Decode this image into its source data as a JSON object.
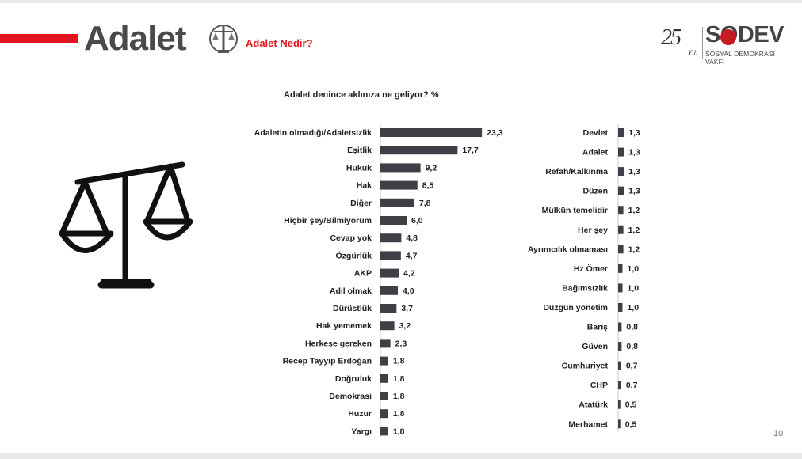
{
  "header": {
    "title": "Adalet",
    "subtitle": "Adalet Nedir?",
    "logo_number": "25",
    "logo_yili": "Yılı",
    "logo_brand": "SODEV",
    "logo_brand_sub": "SOSYAL DEMOKRASİ VAKFI"
  },
  "page_number": "10",
  "colors": {
    "accent": "#e3151f",
    "bar": "#3f3f45",
    "title": "#4a4a4a"
  },
  "icons": [
    "scales-of-justice-icon",
    "justice-emblem-icon",
    "sodev-rose-icon"
  ],
  "chart_data": [
    {
      "type": "bar",
      "orientation": "horizontal",
      "title": "Adalet denince aklınıza ne geliyor?  %",
      "categories": [
        "Adaletin olmadığı/Adaletsizlik",
        "Eşitlik",
        "Hukuk",
        "Hak",
        "Diğer",
        "Hiçbir şey/Bilmiyorum",
        "Cevap yok",
        "Özgürlük",
        "AKP",
        "Adil olmak",
        "Dürüstlük",
        "Hak yememek",
        "Herkese gereken",
        "Recep Tayyip Erdoğan",
        "Doğruluk",
        "Demokrasi",
        "Huzur",
        "Yargı"
      ],
      "values": [
        23.3,
        17.7,
        9.2,
        8.5,
        7.8,
        6.0,
        4.8,
        4.7,
        4.2,
        4.0,
        3.7,
        3.2,
        2.3,
        1.8,
        1.8,
        1.8,
        1.8,
        1.8
      ],
      "labels": [
        "23,3",
        "17,7",
        "9,2",
        "8,5",
        "7,8",
        "6,0",
        "4,8",
        "4,7",
        "4,2",
        "4,0",
        "3,7",
        "3,2",
        "2,3",
        "1,8",
        "1,8",
        "1,8",
        "1,8",
        "1,8"
      ]
    },
    {
      "type": "bar",
      "orientation": "horizontal",
      "categories": [
        "Devlet",
        "Adalet",
        "Refah/Kalkınma",
        "Düzen",
        "Mülkün temelidir",
        "Her şey",
        "Ayrımcılık olmaması",
        "Hz Ömer",
        "Bağımsızlık",
        "Düzgün yönetim",
        "Barış",
        "Güven",
        "Cumhuriyet",
        "CHP",
        "Atatürk",
        "Merhamet"
      ],
      "values": [
        1.3,
        1.3,
        1.3,
        1.3,
        1.2,
        1.2,
        1.2,
        1.0,
        1.0,
        1.0,
        0.8,
        0.8,
        0.7,
        0.7,
        0.5,
        0.5
      ],
      "labels": [
        "1,3",
        "1,3",
        "1,3",
        "1,3",
        "1,2",
        "1,2",
        "1,2",
        "1,0",
        "1,0",
        "1,0",
        "0,8",
        "0,8",
        "0,7",
        "0,7",
        "0,5",
        "0,5"
      ]
    }
  ]
}
